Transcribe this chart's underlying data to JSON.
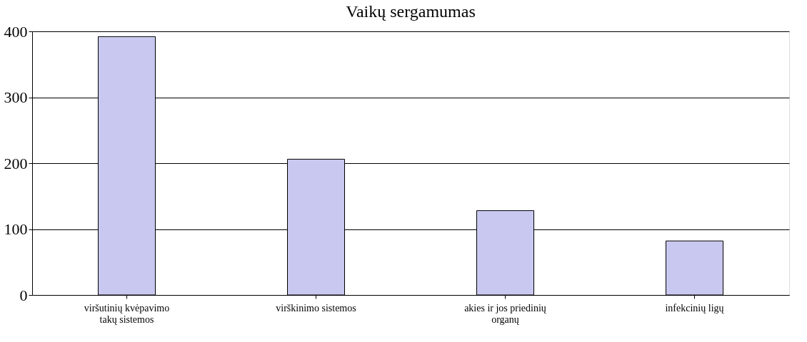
{
  "chart_data": {
    "type": "bar",
    "title": "Vaikų sergamumas",
    "categories": [
      "viršutinių kvėpavimo takų sistemos",
      "virškinimo sistemos",
      "akies ir jos priedinių organų",
      "infekcinių ligų"
    ],
    "values": [
      392,
      206,
      128,
      82
    ],
    "color": "#c8c8f0",
    "ylim": [
      0,
      400
    ],
    "yticks": [
      0,
      100,
      200,
      300,
      400
    ],
    "grid": "y"
  }
}
